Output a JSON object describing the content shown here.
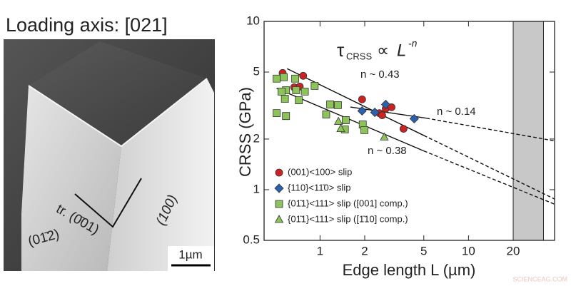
{
  "panel_image": {
    "title": "Loading axis: [021]",
    "trace_label": "tr. (0̄01)",
    "face_left": "(01̄2)",
    "face_right": "(100)",
    "scale_bar": "1µm"
  },
  "chart_data": {
    "type": "scatter",
    "xscale": "log",
    "yscale": "log",
    "xlabel": "Edge length L (µm)",
    "ylabel": "CRSS (GPa)",
    "xlim": [
      0.42,
      38
    ],
    "ylim": [
      0.5,
      10
    ],
    "xticks": [
      1,
      2,
      5,
      10,
      20
    ],
    "yticks": [
      0.5,
      1,
      2,
      5,
      10
    ],
    "shaded_x_range": [
      20,
      32
    ],
    "shaded_color": "#c8c8c8",
    "legend_loc": "lower left",
    "formula": {
      "symbol": "τ",
      "subscript": "CRSS",
      "operator": "∝",
      "variable": "L",
      "exponent": "-n"
    },
    "series": [
      {
        "name": "(001)<100> slip",
        "marker": "circle",
        "color": "#cc2222",
        "x": [
          0.56,
          0.67,
          0.73,
          0.77,
          1.92,
          2.51,
          2.77,
          3.03,
          2.62,
          3.65
        ],
        "values": [
          4.94,
          4.06,
          4.1,
          4.75,
          3.44,
          2.85,
          3.03,
          3.09,
          2.77,
          2.3
        ]
      },
      {
        "name": "{110}<11̄0> slip",
        "marker": "diamond",
        "color": "#2a62b0",
        "x": [
          1.92,
          2.34,
          2.77,
          4.31
        ],
        "values": [
          2.94,
          2.88,
          3.21,
          2.64
        ]
      },
      {
        "name": "{01̄1}<111> slip ([001] comp.)",
        "marker": "square",
        "color": "#8cc45a",
        "x": [
          0.51,
          0.57,
          0.59,
          0.58,
          0.68,
          0.69,
          0.72,
          0.55,
          0.79,
          0.51,
          0.59,
          0.92,
          1.17,
          1.1,
          1.32,
          1.49,
          1.94,
          1.99,
          1.47
        ],
        "values": [
          4.57,
          4.66,
          3.9,
          3.47,
          4.57,
          3.9,
          3.4,
          3.83,
          3.83,
          2.85,
          2.74,
          4.14,
          3.21,
          2.8,
          3.18,
          2.59,
          2.44,
          2.26,
          2.28
        ]
      },
      {
        "name": "{01̄1}<111> slip ([1̄10] comp.)",
        "marker": "triangle",
        "color": "#8cc45a",
        "x": [
          1.33,
          1.38,
          2.71
        ],
        "values": [
          2.54,
          2.3,
          2.05
        ]
      }
    ],
    "fits": [
      {
        "label": "n ~ 0.43",
        "solid": {
          "x": [
            0.6,
            5
          ],
          "values": [
            5.24,
            2.1
          ]
        },
        "dashed": {
          "x": [
            5,
            38
          ],
          "values": [
            2.1,
            0.88
          ]
        }
      },
      {
        "label": "n ~ 0.14",
        "solid": {
          "x": [
            1.6,
            5.2
          ],
          "values": [
            3.1,
            2.66
          ]
        },
        "dashed": {
          "x": [
            5.2,
            38
          ],
          "values": [
            2.66,
            1.95
          ]
        }
      },
      {
        "label": "n ~ 0.38",
        "solid": {
          "x": [
            0.51,
            5
          ],
          "values": [
            4.0,
            1.7
          ]
        },
        "dashed": {
          "x": [
            5,
            38
          ],
          "values": [
            1.7,
            0.82
          ]
        }
      }
    ]
  },
  "watermark": "SCIENCEAG.COM"
}
